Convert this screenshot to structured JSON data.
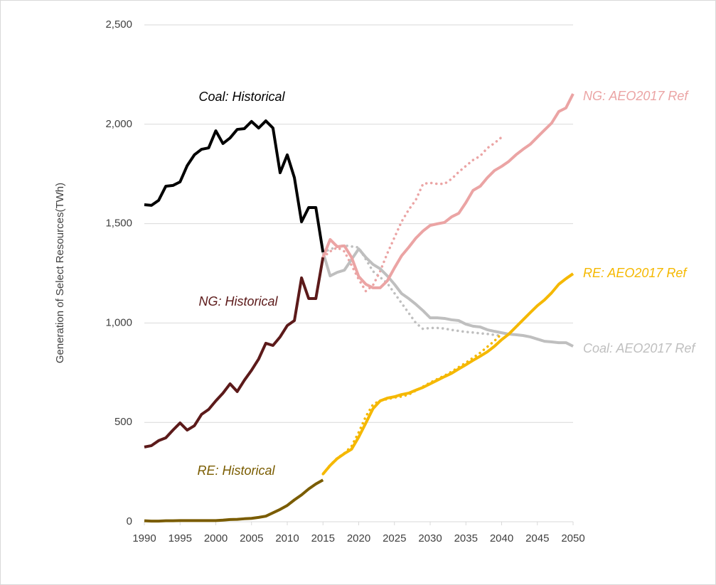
{
  "chart_data": {
    "type": "line",
    "y_label": "Generation of Select Resources(TWh)",
    "x": [
      1990,
      1991,
      1992,
      1993,
      1994,
      1995,
      1996,
      1997,
      1998,
      1999,
      2000,
      2001,
      2002,
      2003,
      2004,
      2005,
      2006,
      2007,
      2008,
      2009,
      2010,
      2011,
      2012,
      2013,
      2014,
      2015,
      2016,
      2017,
      2018,
      2019,
      2020,
      2021,
      2022,
      2023,
      2024,
      2025,
      2026,
      2027,
      2028,
      2029,
      2030,
      2031,
      2032,
      2033,
      2034,
      2035,
      2036,
      2037,
      2038,
      2039,
      2040,
      2041,
      2042,
      2043,
      2044,
      2045,
      2046,
      2047,
      2048,
      2049,
      2050
    ],
    "xlim": [
      1990,
      2050
    ],
    "xticks": [
      1990,
      1995,
      2000,
      2005,
      2010,
      2015,
      2020,
      2025,
      2030,
      2035,
      2040,
      2045,
      2050
    ],
    "ylim": [
      0,
      2500
    ],
    "yticks": [
      0,
      500,
      {
        "value": 1000,
        "label": "1,000"
      },
      {
        "value": 1500,
        "label": "1,500"
      },
      {
        "value": 2000,
        "label": "2,000"
      },
      {
        "value": 2500,
        "label": "2,500"
      }
    ],
    "grid": true,
    "series": [
      {
        "name": "Coal: Historical",
        "color": "#000000",
        "style": "solid",
        "values": [
          1595,
          1592,
          1617,
          1688,
          1692,
          1710,
          1792,
          1846,
          1874,
          1881,
          1967,
          1903,
          1931,
          1974,
          1978,
          2014,
          1981,
          2017,
          1981,
          1756,
          1846,
          1731,
          1509,
          1581,
          1581,
          1356,
          null,
          null,
          null,
          null,
          null,
          null,
          null,
          null,
          null,
          null,
          null,
          null,
          null,
          null,
          null,
          null,
          null,
          null,
          null,
          null,
          null,
          null,
          null,
          null,
          null,
          null,
          null,
          null,
          null,
          null,
          null,
          null,
          null,
          null,
          null
        ]
      },
      {
        "name": "NG: Historical",
        "color": "#5c1a1a",
        "style": "solid",
        "values": [
          376,
          383,
          408,
          422,
          461,
          497,
          461,
          483,
          540,
          565,
          608,
          647,
          694,
          655,
          712,
          762,
          819,
          898,
          887,
          930,
          987,
          1012,
          1227,
          1123,
          1123,
          1330,
          null,
          null,
          null,
          null,
          null,
          null,
          null,
          null,
          null,
          null,
          null,
          null,
          null,
          null,
          null,
          null,
          null,
          null,
          null,
          null,
          null,
          null,
          null,
          null,
          null,
          null,
          null,
          null,
          null,
          null,
          null,
          null,
          null,
          null,
          null
        ]
      },
      {
        "name": "RE: Historical",
        "color": "#7a5c00",
        "style": "solid",
        "values": [
          5,
          3,
          3,
          5,
          5,
          6,
          6,
          6,
          6,
          6,
          6,
          8,
          11,
          12,
          15,
          17,
          22,
          28,
          45,
          62,
          82,
          110,
          135,
          165,
          190,
          210,
          null,
          null,
          null,
          null,
          null,
          null,
          null,
          null,
          null,
          null,
          null,
          null,
          null,
          null,
          null,
          null,
          null,
          null,
          null,
          null,
          null,
          null,
          null,
          null,
          null,
          null,
          null,
          null,
          null,
          null,
          null,
          null,
          null,
          null,
          null
        ]
      },
      {
        "name": "NG: AEO2017 Ref",
        "color": "#eba4a4",
        "style": "solid",
        "values": [
          null,
          null,
          null,
          null,
          null,
          null,
          null,
          null,
          null,
          null,
          null,
          null,
          null,
          null,
          null,
          null,
          null,
          null,
          null,
          null,
          null,
          null,
          null,
          null,
          null,
          1330,
          1420,
          1384,
          1388,
          1330,
          1234,
          1195,
          1177,
          1177,
          1212,
          1277,
          1338,
          1381,
          1427,
          1463,
          1491,
          1499,
          1506,
          1534,
          1552,
          1606,
          1667,
          1688,
          1731,
          1767,
          1788,
          1813,
          1846,
          1874,
          1899,
          1935,
          1971,
          2006,
          2064,
          2082,
          2153
        ]
      },
      {
        "name": "RE: AEO2017 Ref",
        "color": "#f5b800",
        "style": "solid",
        "values": [
          null,
          null,
          null,
          null,
          null,
          null,
          null,
          null,
          null,
          null,
          null,
          null,
          null,
          null,
          null,
          null,
          null,
          null,
          null,
          null,
          null,
          null,
          null,
          null,
          null,
          240,
          283,
          318,
          343,
          365,
          426,
          497,
          569,
          608,
          622,
          629,
          640,
          647,
          662,
          676,
          694,
          712,
          730,
          747,
          769,
          790,
          812,
          833,
          855,
          883,
          916,
          944,
          980,
          1016,
          1052,
          1087,
          1116,
          1152,
          1195,
          1223,
          1248
        ]
      },
      {
        "name": "Coal: AEO2017 Ref",
        "color": "#bfbfbf",
        "style": "solid",
        "values": [
          null,
          null,
          null,
          null,
          null,
          null,
          null,
          null,
          null,
          null,
          null,
          null,
          null,
          null,
          null,
          null,
          null,
          null,
          null,
          null,
          null,
          null,
          null,
          null,
          null,
          1356,
          1237,
          1255,
          1266,
          1320,
          1373,
          1330,
          1295,
          1273,
          1237,
          1195,
          1148,
          1123,
          1094,
          1062,
          1026,
          1026,
          1023,
          1016,
          1012,
          994,
          984,
          980,
          966,
          958,
          951,
          944,
          941,
          937,
          930,
          919,
          908,
          905,
          901,
          901,
          883
        ]
      },
      {
        "color": "#eba4a4",
        "style": "dotted",
        "values": [
          null,
          null,
          null,
          null,
          null,
          null,
          null,
          null,
          null,
          null,
          null,
          null,
          null,
          null,
          null,
          null,
          null,
          null,
          null,
          null,
          null,
          null,
          null,
          null,
          null,
          1330,
          1360,
          1380,
          1360,
          1290,
          1220,
          1160,
          1190,
          1260,
          1350,
          1430,
          1510,
          1570,
          1620,
          1700,
          1705,
          1700,
          1700,
          1725,
          1760,
          1790,
          1820,
          1840,
          1880,
          1905,
          1935,
          null,
          null,
          null,
          null,
          null,
          null,
          null,
          null,
          null,
          null
        ]
      },
      {
        "color": "#f5b800",
        "style": "dotted",
        "values": [
          null,
          null,
          null,
          null,
          null,
          null,
          null,
          null,
          null,
          null,
          null,
          null,
          null,
          null,
          null,
          null,
          null,
          null,
          null,
          null,
          null,
          null,
          null,
          null,
          null,
          240,
          285,
          320,
          345,
          380,
          450,
          530,
          590,
          610,
          617,
          625,
          630,
          640,
          660,
          680,
          700,
          718,
          735,
          755,
          778,
          800,
          825,
          850,
          880,
          910,
          945,
          null,
          null,
          null,
          null,
          null,
          null,
          null,
          null,
          null,
          null
        ]
      },
      {
        "color": "#bfbfbf",
        "style": "dotted",
        "values": [
          null,
          null,
          null,
          null,
          null,
          null,
          null,
          null,
          null,
          null,
          null,
          null,
          null,
          null,
          null,
          null,
          null,
          null,
          null,
          null,
          null,
          null,
          null,
          null,
          null,
          1356,
          1370,
          1385,
          1390,
          1385,
          1380,
          1320,
          1260,
          1230,
          1200,
          1150,
          1100,
          1050,
          1000,
          970,
          975,
          975,
          972,
          965,
          960,
          955,
          952,
          948,
          945,
          940,
          935,
          null,
          null,
          null,
          null,
          null,
          null,
          null,
          null,
          null,
          null
        ]
      }
    ]
  }
}
